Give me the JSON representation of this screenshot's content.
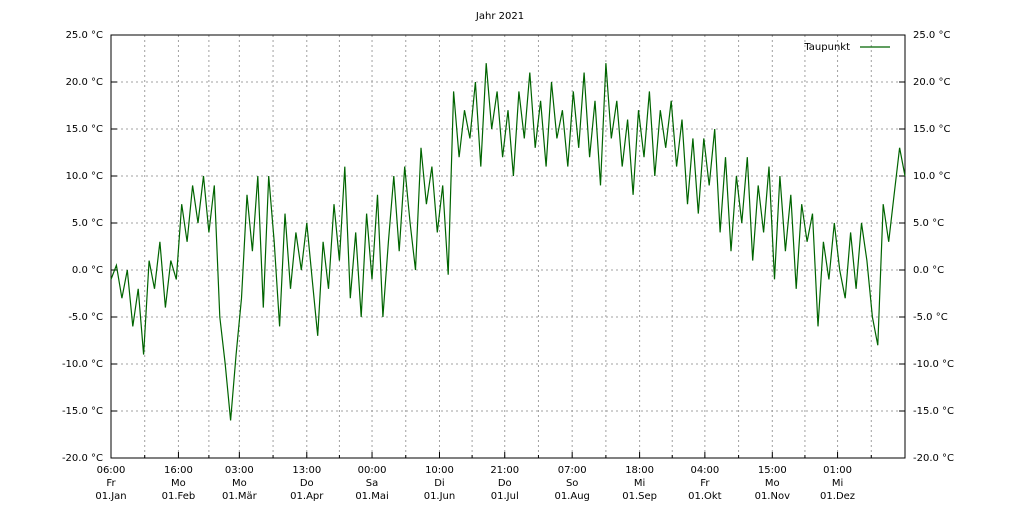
{
  "chart_data": {
    "type": "line",
    "title": "Jahr 2021",
    "xlim": [
      0,
      365
    ],
    "ylim": [
      -20,
      25
    ],
    "grid": true,
    "legend": "top-right",
    "yticks": [
      {
        "value": -20,
        "label": "-20.0 °C"
      },
      {
        "value": -15,
        "label": "-15.0 °C"
      },
      {
        "value": -10,
        "label": "-10.0 °C"
      },
      {
        "value": -5,
        "label": "-5.0 °C"
      },
      {
        "value": 0,
        "label": "0.0 °C"
      },
      {
        "value": 5,
        "label": "5.0 °C"
      },
      {
        "value": 10,
        "label": "10.0 °C"
      },
      {
        "value": 15,
        "label": "15.0 °C"
      },
      {
        "value": 20,
        "label": "20.0 °C"
      },
      {
        "value": 25,
        "label": "25.0 °C"
      }
    ],
    "xticks": [
      {
        "value": 0,
        "label": [
          "06:00",
          "Fr",
          "01.Jan"
        ]
      },
      {
        "value": 31,
        "label": [
          "16:00",
          "Mo",
          "01.Feb"
        ]
      },
      {
        "value": 59,
        "label": [
          "03:00",
          "Mo",
          "01.Mär"
        ]
      },
      {
        "value": 90,
        "label": [
          "13:00",
          "Do",
          "01.Apr"
        ]
      },
      {
        "value": 120,
        "label": [
          "00:00",
          "Sa",
          "01.Mai"
        ]
      },
      {
        "value": 151,
        "label": [
          "10:00",
          "Di",
          "01.Jun"
        ]
      },
      {
        "value": 181,
        "label": [
          "21:00",
          "Do",
          "01.Jul"
        ]
      },
      {
        "value": 212,
        "label": [
          "07:00",
          "So",
          "01.Aug"
        ]
      },
      {
        "value": 243,
        "label": [
          "18:00",
          "Mi",
          "01.Sep"
        ]
      },
      {
        "value": 273,
        "label": [
          "04:00",
          "Fr",
          "01.Okt"
        ]
      },
      {
        "value": 304,
        "label": [
          "15:00",
          "Mo",
          "01.Nov"
        ]
      },
      {
        "value": 334,
        "label": [
          "01:00",
          "Mi",
          "01.Dez"
        ]
      }
    ],
    "xminorticks": [
      15.5,
      45,
      74.5,
      105,
      135.5,
      166,
      196.5,
      227.5,
      258,
      288.5,
      319,
      349.5
    ],
    "series": [
      {
        "name": "Taupunkt",
        "color": "#006400",
        "x": [
          0,
          2.5,
          5,
          7.5,
          10,
          12.5,
          15,
          17.5,
          20,
          22.5,
          25,
          27.5,
          30,
          32.5,
          35,
          37.5,
          40,
          42.5,
          45,
          47.5,
          50,
          52.5,
          55,
          57.5,
          60,
          62.5,
          65,
          67.5,
          70,
          72.5,
          75,
          77.5,
          80,
          82.5,
          85,
          87.5,
          90,
          92.5,
          95,
          97.5,
          100,
          102.5,
          105,
          107.5,
          110,
          112.5,
          115,
          117.5,
          120,
          122.5,
          125,
          127.5,
          130,
          132.5,
          135,
          137.5,
          140,
          142.5,
          145,
          147.5,
          150,
          152.5,
          155,
          157.5,
          160,
          162.5,
          165,
          167.5,
          170,
          172.5,
          175,
          177.5,
          180,
          182.5,
          185,
          187.5,
          190,
          192.5,
          195,
          197.5,
          200,
          202.5,
          205,
          207.5,
          210,
          212.5,
          215,
          217.5,
          220,
          222.5,
          225,
          227.5,
          230,
          232.5,
          235,
          237.5,
          240,
          242.5,
          245,
          247.5,
          250,
          252.5,
          255,
          257.5,
          260,
          262.5,
          265,
          267.5,
          270,
          272.5,
          275,
          277.5,
          280,
          282.5,
          285,
          287.5,
          290,
          292.5,
          295,
          297.5,
          300,
          302.5,
          305,
          307.5,
          310,
          312.5,
          315,
          317.5,
          320,
          322.5,
          325,
          327.5,
          330,
          332.5,
          335,
          337.5,
          340,
          342.5,
          345,
          347.5,
          350,
          352.5,
          355,
          357.5,
          360,
          362.5,
          365
        ],
        "values": [
          -1,
          0.5,
          -3,
          0,
          -6,
          -2,
          -9,
          1,
          -2,
          3,
          -4,
          1,
          -1,
          7,
          3,
          9,
          5,
          10,
          4,
          9,
          -5,
          -10,
          -16,
          -9,
          -3,
          8,
          2,
          10,
          -4,
          10,
          3,
          -6,
          6,
          -2,
          4,
          0,
          5,
          -1,
          -7,
          3,
          -2,
          7,
          1,
          11,
          -3,
          4,
          -5,
          6,
          -1,
          8,
          -5,
          3,
          10,
          2,
          11,
          5,
          0,
          13,
          7,
          11,
          4,
          9,
          -0.5,
          19,
          12,
          17,
          14,
          20,
          11,
          22,
          15,
          19,
          12,
          17,
          10,
          19,
          14,
          21,
          13,
          18,
          11,
          20,
          14,
          17,
          11,
          19,
          13,
          21,
          12,
          18,
          9,
          22,
          14,
          18,
          11,
          16,
          8,
          17,
          12,
          19,
          10,
          17,
          13,
          18,
          11,
          16,
          7,
          14,
          6,
          14,
          9,
          15,
          4,
          12,
          2,
          10,
          5,
          12,
          1,
          9,
          4,
          11,
          -1,
          10,
          2,
          8,
          -2,
          7,
          3,
          6,
          -6,
          3,
          -1,
          5,
          0,
          -3,
          4,
          -2,
          5,
          1,
          -5,
          -8,
          7,
          3,
          8,
          13,
          10
        ]
      }
    ]
  }
}
